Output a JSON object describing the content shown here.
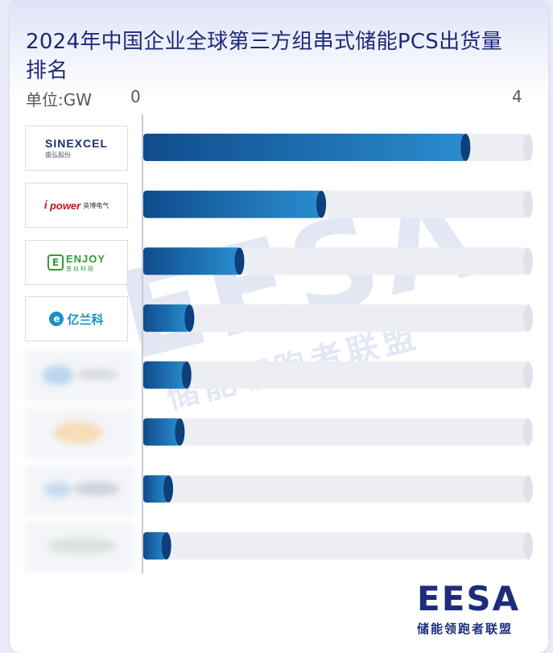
{
  "chart_data": {
    "type": "bar",
    "orientation": "horizontal",
    "title": "2024年中国企业全球第三方组串式储能PCS出货量排名",
    "unit_label": "单位:GW",
    "xlim": [
      0,
      4
    ],
    "tick_labels": [
      "0",
      "4"
    ],
    "categories": [
      {
        "logo_en": "SINEXCEL",
        "logo_cn": "盛弘股份",
        "blurred": false
      },
      {
        "logo_en": "power",
        "logo_cn": "英博电气",
        "blurred": false
      },
      {
        "logo_en": "ENJOY",
        "logo_cn": "恩玖科技",
        "blurred": false
      },
      {
        "logo_en": "",
        "logo_cn": "亿兰科",
        "blurred": false
      },
      {
        "logo_en": "",
        "logo_cn": "",
        "blurred": true
      },
      {
        "logo_en": "",
        "logo_cn": "",
        "blurred": true
      },
      {
        "logo_en": "",
        "logo_cn": "",
        "blurred": true
      },
      {
        "logo_en": "",
        "logo_cn": "",
        "blurred": true
      }
    ],
    "values": [
      3.35,
      1.85,
      1.0,
      0.48,
      0.45,
      0.38,
      0.26,
      0.24
    ],
    "bar_color_start": "#0f4c8c",
    "bar_color_end": "#2a8ccf",
    "track_color": "#eceef3",
    "grid": false,
    "legend": "none"
  },
  "watermark": {
    "mark": "EESA",
    "text": "储能领跑者联盟"
  },
  "brand": {
    "mark": "EESA",
    "text": "储能领跑者联盟",
    "color": "#1d2d7c",
    "accent": "#2fb15a"
  }
}
